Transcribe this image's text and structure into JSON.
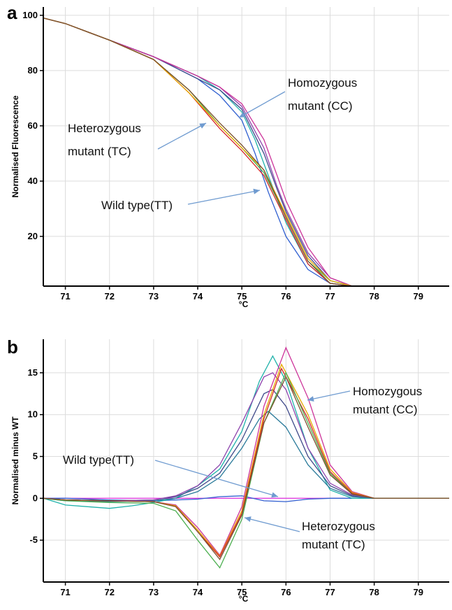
{
  "panels": [
    {
      "letter": "a",
      "ylabel": "Normalised Fluorescence",
      "xlabel": "°C",
      "annotations": [
        {
          "id": "homo",
          "lines": [
            "Homozygous",
            "mutant (CC)"
          ]
        },
        {
          "id": "het",
          "lines": [
            "Heterozygous",
            "mutant (TC)"
          ]
        },
        {
          "id": "wt",
          "lines": [
            "Wild type(TT)"
          ]
        }
      ]
    },
    {
      "letter": "b",
      "ylabel": "Normalised minus WT",
      "xlabel": "°C",
      "annotations": [
        {
          "id": "homo",
          "lines": [
            "Homozygous",
            "mutant (CC)"
          ]
        },
        {
          "id": "wt",
          "lines": [
            "Wild type(TT)"
          ]
        },
        {
          "id": "het",
          "lines": [
            "Heterozygous",
            "mutant (TC)"
          ]
        }
      ]
    }
  ],
  "chart_data": [
    {
      "type": "line",
      "panel": "a",
      "xlabel": "°C",
      "ylabel": "Normalised Fluorescence",
      "xlim": [
        70.5,
        79.7
      ],
      "ylim": [
        2,
        103
      ],
      "xticks": [
        71,
        72,
        73,
        74,
        75,
        76,
        77,
        78,
        79
      ],
      "yticks": [
        20,
        40,
        60,
        80,
        100
      ],
      "grid": true,
      "series": [
        {
          "color": "#2f5fd0",
          "x": [
            70.5,
            71,
            72,
            73,
            74,
            74.5,
            75,
            75.3,
            75.6,
            76,
            76.5,
            77,
            77.5,
            78,
            79,
            79.7
          ],
          "y": [
            99,
            97,
            91,
            85,
            77,
            71,
            62,
            50,
            36,
            20,
            8,
            3,
            2,
            2,
            2,
            2
          ]
        },
        {
          "color": "#20b2aa",
          "x": [
            70.5,
            71,
            72,
            73,
            74,
            74.5,
            75,
            75.3,
            75.6,
            76,
            76.5,
            77,
            77.5,
            78,
            79,
            79.7
          ],
          "y": [
            99,
            97,
            91,
            85,
            78,
            73,
            65,
            55,
            42,
            25,
            10,
            3,
            2,
            2,
            2,
            2
          ]
        },
        {
          "color": "#8e44ad",
          "x": [
            70.5,
            71,
            72,
            73,
            74,
            74.5,
            75,
            75.5,
            75.8,
            76,
            76.5,
            77,
            77.5,
            78,
            79,
            79.7
          ],
          "y": [
            99,
            97,
            91,
            85,
            78,
            74,
            67,
            52,
            38,
            30,
            14,
            5,
            2,
            2,
            2,
            2
          ]
        },
        {
          "color": "#404a8a",
          "x": [
            70.5,
            71,
            72,
            73,
            74,
            74.5,
            75,
            75.5,
            75.8,
            76,
            76.5,
            77,
            77.5,
            78,
            79,
            79.7
          ],
          "y": [
            99,
            97,
            91,
            85,
            77,
            73,
            66,
            50,
            37,
            29,
            13,
            4,
            2,
            2,
            2,
            2
          ]
        },
        {
          "color": "#cc3399",
          "x": [
            70.5,
            71,
            72,
            73,
            74,
            74.5,
            75,
            75.5,
            75.8,
            76,
            76.5,
            77,
            77.5,
            78,
            79,
            79.7
          ],
          "y": [
            99,
            97,
            91,
            85,
            78,
            74,
            68,
            55,
            42,
            33,
            16,
            5,
            2,
            2,
            2,
            2
          ]
        },
        {
          "color": "#4caf50",
          "x": [
            70.5,
            71,
            72,
            73,
            73.8,
            74.5,
            75,
            75.5,
            76,
            76.5,
            77,
            77.5,
            78,
            79,
            79.7
          ],
          "y": [
            99,
            97,
            91,
            84,
            73,
            60,
            52,
            43,
            27,
            11,
            4,
            2,
            2,
            2,
            2
          ]
        },
        {
          "color": "#d62728",
          "x": [
            70.5,
            71,
            72,
            73,
            73.8,
            74.5,
            75,
            75.5,
            76,
            76.5,
            77,
            77.5,
            78,
            79,
            79.7
          ],
          "y": [
            99,
            97,
            91,
            84,
            72,
            59,
            51,
            42,
            26,
            10,
            3,
            2,
            2,
            2,
            2
          ]
        },
        {
          "color": "#e6a800",
          "x": [
            70.5,
            71,
            72,
            73,
            73.8,
            74.5,
            75,
            75.5,
            76,
            76.5,
            77,
            77.5,
            78,
            79,
            79.7
          ],
          "y": [
            99,
            97,
            91,
            84,
            72,
            60,
            52,
            44,
            28,
            12,
            4,
            2,
            2,
            2,
            2
          ]
        },
        {
          "color": "#7b5230",
          "x": [
            70.5,
            71,
            72,
            73,
            73.8,
            74.5,
            75,
            75.5,
            76,
            76.5,
            77,
            77.5,
            78,
            79,
            79.7
          ],
          "y": [
            99,
            97,
            91,
            84,
            73,
            61,
            53,
            44,
            27,
            11,
            3,
            2,
            2,
            2,
            2
          ]
        }
      ]
    },
    {
      "type": "line",
      "panel": "b",
      "xlabel": "°C",
      "ylabel": "Normalised minus WT",
      "xlim": [
        70.5,
        79.7
      ],
      "ylim": [
        -10,
        19
      ],
      "xticks": [
        71,
        72,
        73,
        74,
        75,
        76,
        77,
        78,
        79
      ],
      "yticks": [
        15,
        10,
        5,
        0,
        -5
      ],
      "grid": true,
      "series": [
        {
          "color": "#e040e0",
          "x": [
            70.5,
            79.7
          ],
          "y": [
            0,
            0
          ]
        },
        {
          "color": "#2f5fd0",
          "x": [
            70.5,
            71,
            72,
            73,
            74,
            74.5,
            75,
            75.5,
            76,
            76.5,
            77,
            78,
            79,
            79.7
          ],
          "y": [
            0,
            0,
            -0.2,
            -0.3,
            -0.1,
            0.2,
            0.3,
            -0.3,
            -0.4,
            -0.1,
            0,
            0,
            0,
            0
          ]
        },
        {
          "color": "#20b2aa",
          "x": [
            70.5,
            71,
            71.5,
            72,
            72.5,
            73,
            73.5,
            74,
            74.5,
            75,
            75.4,
            75.7,
            76,
            76.5,
            77,
            77.5,
            78,
            79,
            79.7
          ],
          "y": [
            0,
            -0.8,
            -1.0,
            -1.2,
            -0.9,
            -0.5,
            0,
            1.5,
            3.5,
            8,
            14,
            17,
            14,
            6,
            1,
            0,
            0,
            0,
            0
          ]
        },
        {
          "color": "#404a8a",
          "x": [
            70.5,
            71,
            72,
            73,
            73.5,
            74,
            74.5,
            75,
            75.5,
            75.7,
            76,
            76.5,
            77,
            77.5,
            78,
            79,
            79.7
          ],
          "y": [
            0,
            -0.2,
            -0.3,
            -0.2,
            0.2,
            1.2,
            3,
            7,
            12.5,
            13,
            11,
            5,
            1.5,
            0.3,
            0,
            0,
            0
          ]
        },
        {
          "color": "#2a7a9a",
          "x": [
            70.5,
            71,
            72,
            73,
            73.5,
            74,
            74.5,
            75,
            75.4,
            75.6,
            76,
            76.5,
            77,
            77.5,
            78,
            79,
            79.7
          ],
          "y": [
            0,
            -0.3,
            -0.4,
            -0.3,
            0,
            0.8,
            2.5,
            6,
            9.5,
            10.4,
            8.5,
            4,
            1.2,
            0.2,
            0,
            0,
            0
          ]
        },
        {
          "color": "#8e44ad",
          "x": [
            70.5,
            71,
            72,
            73,
            73.5,
            74,
            74.5,
            75,
            75.5,
            75.7,
            76,
            76.5,
            77,
            77.5,
            78,
            79,
            79.7
          ],
          "y": [
            0,
            -0.2,
            -0.3,
            -0.2,
            0.3,
            1.5,
            4,
            9,
            14.5,
            15,
            13,
            6,
            1.8,
            0.4,
            0,
            0,
            0
          ]
        },
        {
          "color": "#cc3399",
          "x": [
            70.5,
            71,
            72,
            73,
            73.5,
            74,
            74.5,
            75,
            75.5,
            76,
            76.5,
            77,
            77.5,
            78,
            79,
            79.7
          ],
          "y": [
            0,
            -0.2,
            -0.3,
            -0.4,
            -0.8,
            -3.5,
            -6.8,
            -1,
            11,
            18,
            12,
            4,
            0.8,
            0,
            0,
            0
          ]
        },
        {
          "color": "#e6a800",
          "x": [
            70.5,
            71,
            72,
            73,
            73.5,
            74,
            74.5,
            75,
            75.5,
            75.9,
            76.5,
            77,
            77.5,
            78,
            79,
            79.7
          ],
          "y": [
            0,
            -0.2,
            -0.3,
            -0.4,
            -0.9,
            -3.8,
            -6.9,
            -1.5,
            10,
            16,
            10,
            3.5,
            0.7,
            0,
            0,
            0
          ]
        },
        {
          "color": "#d62728",
          "x": [
            70.5,
            71,
            72,
            73,
            73.5,
            74,
            74.5,
            75,
            75.5,
            75.9,
            76.5,
            77,
            77.5,
            78,
            79,
            79.7
          ],
          "y": [
            0,
            -0.2,
            -0.3,
            -0.4,
            -1,
            -4,
            -7,
            -1.8,
            9.5,
            15.5,
            9.5,
            3.2,
            0.6,
            0,
            0,
            0
          ]
        },
        {
          "color": "#4caf50",
          "x": [
            70.5,
            71,
            72,
            73,
            73.5,
            74,
            74.5,
            75,
            75.5,
            76,
            76.5,
            77,
            77.5,
            78,
            79,
            79.7
          ],
          "y": [
            0,
            -0.3,
            -0.5,
            -0.6,
            -1.5,
            -5,
            -8.3,
            -2.5,
            9,
            15,
            9,
            3,
            0.5,
            0,
            0,
            0
          ]
        },
        {
          "color": "#7b5230",
          "x": [
            70.5,
            71,
            72,
            73,
            73.5,
            74,
            74.5,
            75,
            75.5,
            76,
            76.5,
            77,
            77.5,
            78,
            79,
            79.7
          ],
          "y": [
            0,
            -0.2,
            -0.3,
            -0.4,
            -1,
            -4,
            -7.3,
            -2,
            9,
            14.5,
            8.5,
            2.8,
            0.5,
            0,
            0,
            0
          ]
        }
      ]
    }
  ]
}
